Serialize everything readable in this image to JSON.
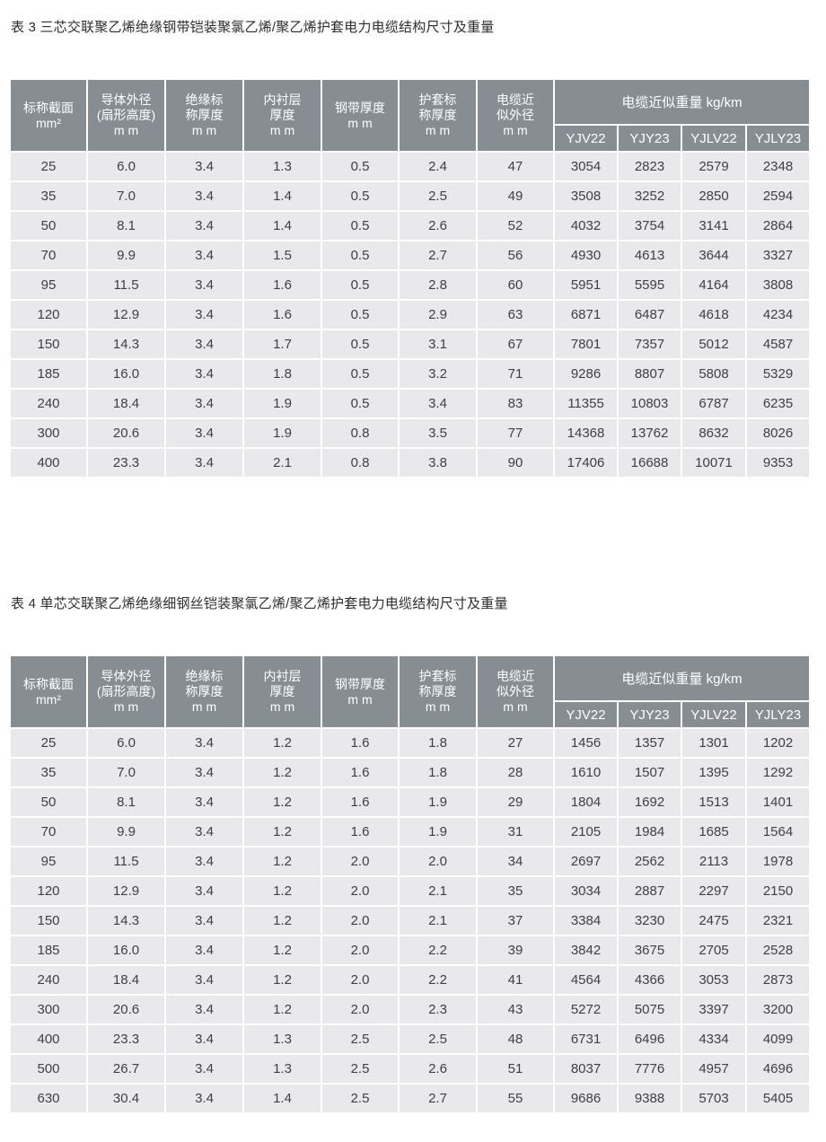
{
  "colors": {
    "header_bg": "#868d93",
    "header_text": "#ffffff",
    "row_bg": "#e9e9eb",
    "cell_text": "#3f4042",
    "title_text": "#2d2d2d",
    "page_bg": "#ffffff"
  },
  "tables": [
    {
      "title": "表 3 三芯交联聚乙烯绝缘钢带铠装聚氯乙烯/聚乙烯护套电力电缆结构尺寸及重量",
      "columns": [
        "标称截面\nmm²",
        "导体外径\n(扇形高度)\nm m",
        "绝缘标\n称厚度\nm m",
        "内衬层\n厚度\nm m",
        "钢带厚度\nm m",
        "护套标\n称厚度\nm m",
        "电缆近\n似外径\nm m"
      ],
      "weight_group": "电缆近似重量 kg/km",
      "weight_columns": [
        "YJV22",
        "YJY23",
        "YJLV22",
        "YJLY23"
      ],
      "rows": [
        [
          "25",
          "6.0",
          "3.4",
          "1.3",
          "0.5",
          "2.4",
          "47",
          "3054",
          "2823",
          "2579",
          "2348"
        ],
        [
          "35",
          "7.0",
          "3.4",
          "1.4",
          "0.5",
          "2.5",
          "49",
          "3508",
          "3252",
          "2850",
          "2594"
        ],
        [
          "50",
          "8.1",
          "3.4",
          "1.4",
          "0.5",
          "2.6",
          "52",
          "4032",
          "3754",
          "3141",
          "2864"
        ],
        [
          "70",
          "9.9",
          "3.4",
          "1.5",
          "0.5",
          "2.7",
          "56",
          "4930",
          "4613",
          "3644",
          "3327"
        ],
        [
          "95",
          "11.5",
          "3.4",
          "1.6",
          "0.5",
          "2.8",
          "60",
          "5951",
          "5595",
          "4164",
          "3808"
        ],
        [
          "120",
          "12.9",
          "3.4",
          "1.6",
          "0.5",
          "2.9",
          "63",
          "6871",
          "6487",
          "4618",
          "4234"
        ],
        [
          "150",
          "14.3",
          "3.4",
          "1.7",
          "0.5",
          "3.1",
          "67",
          "7801",
          "7357",
          "5012",
          "4587"
        ],
        [
          "185",
          "16.0",
          "3.4",
          "1.8",
          "0.5",
          "3.2",
          "71",
          "9286",
          "8807",
          "5808",
          "5329"
        ],
        [
          "240",
          "18.4",
          "3.4",
          "1.9",
          "0.5",
          "3.4",
          "83",
          "11355",
          "10803",
          "6787",
          "6235"
        ],
        [
          "300",
          "20.6",
          "3.4",
          "1.9",
          "0.8",
          "3.5",
          "77",
          "14368",
          "13762",
          "8632",
          "8026"
        ],
        [
          "400",
          "23.3",
          "3.4",
          "2.1",
          "0.8",
          "3.8",
          "90",
          "17406",
          "16688",
          "10071",
          "9353"
        ]
      ]
    },
    {
      "title": "表 4 单芯交联聚乙烯绝缘细钢丝铠装聚氯乙烯/聚乙烯护套电力电缆结构尺寸及重量",
      "columns": [
        "标称截面\nmm²",
        "导体外径\n(扇形高度)\nm m",
        "绝缘标\n称厚度\nm m",
        "内衬层\n厚度\nm m",
        "钢带厚度\nm m",
        "护套标\n称厚度\nm m",
        "电缆近\n似外径\nm m"
      ],
      "weight_group": "电缆近似重量 kg/km",
      "weight_columns": [
        "YJV22",
        "YJY23",
        "YJLV22",
        "YJLY23"
      ],
      "rows": [
        [
          "25",
          "6.0",
          "3.4",
          "1.2",
          "1.6",
          "1.8",
          "27",
          "1456",
          "1357",
          "1301",
          "1202"
        ],
        [
          "35",
          "7.0",
          "3.4",
          "1.2",
          "1.6",
          "1.8",
          "28",
          "1610",
          "1507",
          "1395",
          "1292"
        ],
        [
          "50",
          "8.1",
          "3.4",
          "1.2",
          "1.6",
          "1.9",
          "29",
          "1804",
          "1692",
          "1513",
          "1401"
        ],
        [
          "70",
          "9.9",
          "3.4",
          "1.2",
          "1.6",
          "1.9",
          "31",
          "2105",
          "1984",
          "1685",
          "1564"
        ],
        [
          "95",
          "11.5",
          "3.4",
          "1.2",
          "2.0",
          "2.0",
          "34",
          "2697",
          "2562",
          "2113",
          "1978"
        ],
        [
          "120",
          "12.9",
          "3.4",
          "1.2",
          "2.0",
          "2.1",
          "35",
          "3034",
          "2887",
          "2297",
          "2150"
        ],
        [
          "150",
          "14.3",
          "3.4",
          "1.2",
          "2.0",
          "2.1",
          "37",
          "3384",
          "3230",
          "2475",
          "2321"
        ],
        [
          "185",
          "16.0",
          "3.4",
          "1.2",
          "2.0",
          "2.2",
          "39",
          "3842",
          "3675",
          "2705",
          "2528"
        ],
        [
          "240",
          "18.4",
          "3.4",
          "1.2",
          "2.0",
          "2.2",
          "41",
          "4564",
          "4366",
          "3053",
          "2873"
        ],
        [
          "300",
          "20.6",
          "3.4",
          "1.2",
          "2.0",
          "2.3",
          "43",
          "5272",
          "5075",
          "3397",
          "3200"
        ],
        [
          "400",
          "23.3",
          "3.4",
          "1.3",
          "2.5",
          "2.5",
          "48",
          "6731",
          "6496",
          "4334",
          "4099"
        ],
        [
          "500",
          "26.7",
          "3.4",
          "1.3",
          "2.5",
          "2.6",
          "51",
          "8037",
          "7776",
          "4957",
          "4696"
        ],
        [
          "630",
          "30.4",
          "3.4",
          "1.4",
          "2.5",
          "2.7",
          "55",
          "9686",
          "9388",
          "5703",
          "5405"
        ]
      ]
    }
  ]
}
